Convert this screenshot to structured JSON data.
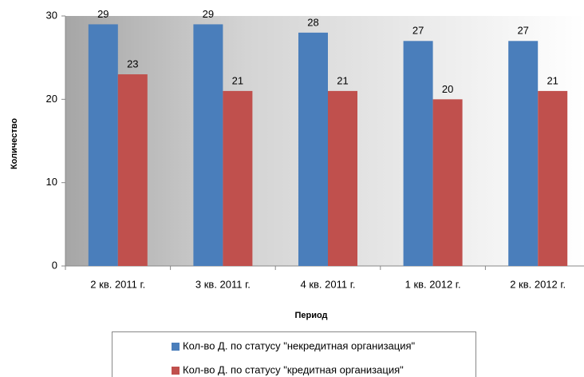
{
  "chart_data": {
    "type": "bar",
    "categories": [
      "2 кв. 2011 г.",
      "3 кв. 2011 г.",
      "4 кв. 2011 г.",
      "1 кв. 2012 г.",
      "2 кв. 2012 г."
    ],
    "series": [
      {
        "name": "Кол-во Д. по статусу \"некредитная организация\"",
        "color": "#4a7ebb",
        "values": [
          29,
          29,
          28,
          27,
          27
        ]
      },
      {
        "name": "Кол-во Д. по статусу \"кредитная организация\"",
        "color": "#c0504d",
        "values": [
          23,
          21,
          21,
          20,
          21
        ]
      }
    ],
    "ylim": [
      0,
      30
    ],
    "yticks": [
      0,
      10,
      20,
      30
    ],
    "y_label": "Количество",
    "x_label": "Период"
  }
}
